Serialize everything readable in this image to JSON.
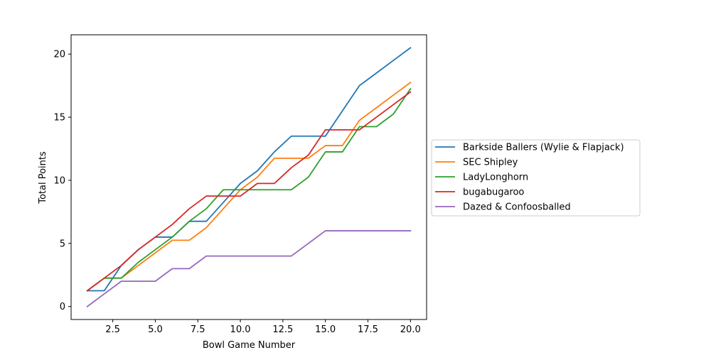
{
  "chart_data": {
    "type": "line",
    "title": "",
    "xlabel": "Bowl Game Number",
    "ylabel": "Total Points",
    "xlim": [
      0.05,
      20.95
    ],
    "ylim": [
      -1.03,
      21.53
    ],
    "xticks": [
      2.5,
      5.0,
      7.5,
      10.0,
      12.5,
      15.0,
      17.5,
      20.0
    ],
    "xtick_labels": [
      "2.5",
      "5.0",
      "7.5",
      "10.0",
      "12.5",
      "15.0",
      "17.5",
      "20.0"
    ],
    "yticks": [
      0,
      5,
      10,
      15,
      20
    ],
    "ytick_labels": [
      "0",
      "5",
      "10",
      "15",
      "20"
    ],
    "grid": false,
    "legend_position": "center-right, outside plot",
    "x": [
      1,
      2,
      3,
      4,
      5,
      6,
      7,
      8,
      9,
      10,
      11,
      12,
      13,
      14,
      15,
      16,
      17,
      18,
      19,
      20
    ],
    "series": [
      {
        "name": "Barkside Ballers (Wylie & Flapjack)",
        "color": "#1f77b4",
        "values": [
          1.25,
          1.25,
          3.25,
          4.5,
          5.5,
          5.5,
          6.75,
          6.75,
          8.25,
          9.75,
          10.75,
          12.25,
          13.5,
          13.5,
          13.5,
          15.5,
          17.5,
          18.5,
          19.5,
          20.5
        ]
      },
      {
        "name": "SEC Shipley",
        "color": "#ff7f0e",
        "values": [
          1.25,
          2.25,
          2.25,
          3.25,
          4.25,
          5.25,
          5.25,
          6.25,
          7.75,
          9.25,
          10.25,
          11.75,
          11.75,
          11.75,
          12.75,
          12.75,
          14.75,
          15.75,
          16.75,
          17.75
        ]
      },
      {
        "name": "LadyLonghorn",
        "color": "#2ca02c",
        "values": [
          1.25,
          2.25,
          2.25,
          3.5,
          4.5,
          5.5,
          6.75,
          7.75,
          9.25,
          9.25,
          9.25,
          9.25,
          9.25,
          10.25,
          12.25,
          12.25,
          14.25,
          14.25,
          15.25,
          17.25
        ]
      },
      {
        "name": "bugabugaroo",
        "color": "#d62728",
        "values": [
          1.25,
          2.25,
          3.25,
          4.5,
          5.5,
          6.5,
          7.75,
          8.75,
          8.75,
          8.75,
          9.75,
          9.75,
          11.0,
          12.0,
          14.0,
          14.0,
          14.0,
          15.0,
          16.0,
          17.0
        ]
      },
      {
        "name": "Dazed & Confoosballed",
        "color": "#9467bd",
        "values": [
          0,
          1,
          2,
          2,
          2,
          3,
          3,
          4,
          4,
          4,
          4,
          4,
          4,
          5,
          6,
          6,
          6,
          6,
          6,
          6
        ]
      }
    ]
  }
}
